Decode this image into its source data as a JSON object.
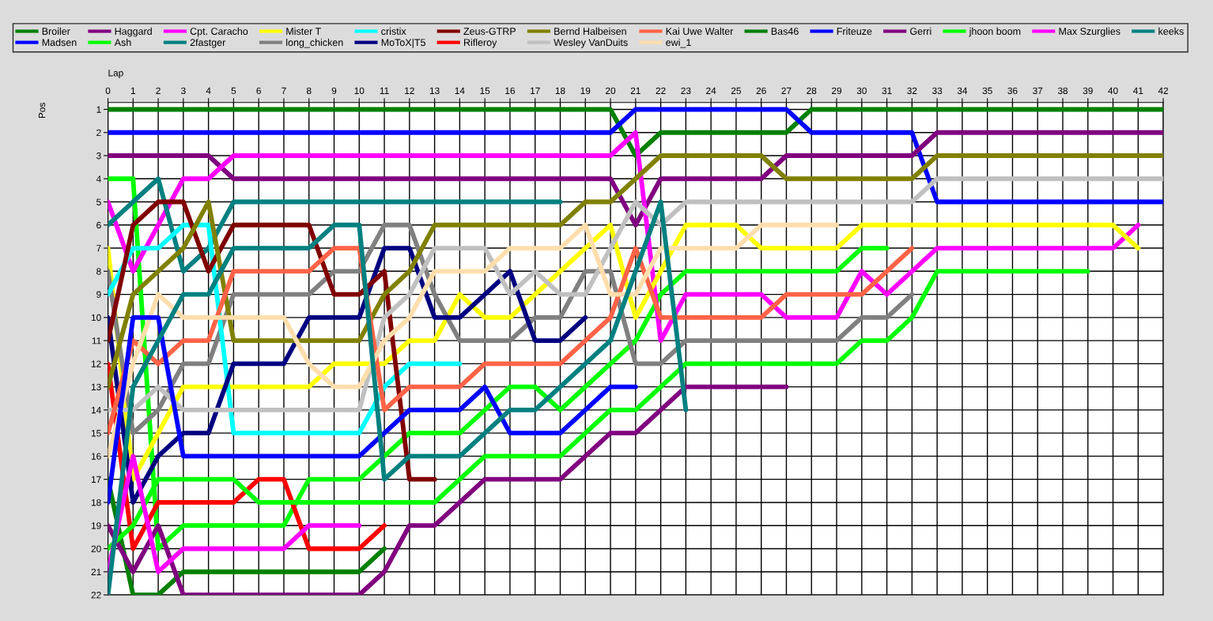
{
  "chart_data": {
    "type": "line",
    "xlabel": "Lap",
    "ylabel": "Pos",
    "x": [
      0,
      1,
      2,
      3,
      4,
      5,
      6,
      7,
      8,
      9,
      10,
      11,
      12,
      13,
      14,
      15,
      16,
      17,
      18,
      19,
      20,
      21,
      22,
      23,
      24,
      25,
      26,
      27,
      28,
      29,
      30,
      31,
      32,
      33,
      34,
      35,
      36,
      37,
      38,
      39,
      40,
      41,
      42
    ],
    "xlim": [
      0,
      42
    ],
    "xticks": [
      0,
      1,
      2,
      3,
      4,
      5,
      6,
      7,
      8,
      9,
      10,
      11,
      12,
      13,
      14,
      15,
      16,
      17,
      18,
      19,
      20,
      21,
      22,
      23,
      24,
      25,
      26,
      27,
      28,
      29,
      30,
      31,
      32,
      33,
      34,
      35,
      36,
      37,
      38,
      39,
      40,
      41,
      42
    ],
    "ylim": [
      22,
      0.7
    ],
    "yticks": [
      1,
      2,
      3,
      4,
      5,
      6,
      7,
      8,
      9,
      10,
      11,
      12,
      13,
      14,
      15,
      16,
      17,
      18,
      19,
      20,
      21,
      22
    ],
    "grid": true,
    "legend": "top",
    "line_style": "solid",
    "series": [
      {
        "name": "Broiler",
        "color": "#008000",
        "values": [
          1,
          1,
          1,
          1,
          1,
          1,
          1,
          1,
          1,
          1,
          1,
          1,
          1,
          1,
          1,
          1,
          1,
          1,
          1,
          1,
          1,
          3,
          2,
          2,
          2,
          2,
          2,
          2,
          1,
          1,
          1,
          1,
          1,
          1,
          1,
          1,
          1,
          1,
          1,
          1,
          1,
          1,
          1
        ]
      },
      {
        "name": "Madsen",
        "color": "#0000ff",
        "values": [
          2,
          2,
          2,
          2,
          2,
          2,
          2,
          2,
          2,
          2,
          2,
          2,
          2,
          2,
          2,
          2,
          2,
          2,
          2,
          2,
          2,
          1,
          1,
          1,
          1,
          1,
          1,
          1,
          2,
          2,
          2,
          2,
          2,
          5,
          5,
          5,
          5,
          5,
          5,
          5,
          5,
          5,
          5
        ]
      },
      {
        "name": "Haggard",
        "color": "#800080",
        "values": [
          3,
          3,
          3,
          3,
          3,
          4,
          4,
          4,
          4,
          4,
          4,
          4,
          4,
          4,
          4,
          4,
          4,
          4,
          4,
          4,
          4,
          6,
          4,
          4,
          4,
          4,
          4,
          3,
          3,
          3,
          3,
          3,
          3,
          2,
          2,
          2,
          2,
          2,
          2,
          2,
          2,
          2,
          2
        ]
      },
      {
        "name": "Ash",
        "color": "#00ff00",
        "values": [
          4,
          4,
          20,
          19,
          19,
          19,
          19,
          19,
          17,
          17,
          17,
          16,
          15,
          15,
          15,
          14,
          13,
          13,
          14,
          13,
          12,
          11,
          9,
          8,
          8,
          8,
          8,
          8,
          8,
          8,
          7,
          7,
          null,
          null,
          null,
          null,
          null,
          null,
          null,
          null,
          null,
          null,
          null
        ]
      },
      {
        "name": "Cpt. Caracho",
        "color": "#ff00ff",
        "values": [
          5,
          8,
          6,
          4,
          4,
          3,
          3,
          3,
          3,
          3,
          3,
          3,
          3,
          3,
          3,
          3,
          3,
          3,
          3,
          3,
          3,
          2,
          11,
          9,
          9,
          9,
          9,
          10,
          10,
          10,
          8,
          9,
          8,
          7,
          7,
          7,
          7,
          7,
          7,
          7,
          7,
          6,
          null
        ]
      },
      {
        "name": "2fastger",
        "color": "#008080",
        "values": [
          6,
          5,
          4,
          8,
          7,
          5,
          5,
          5,
          5,
          5,
          5,
          5,
          5,
          5,
          5,
          5,
          5,
          5,
          5,
          null,
          null,
          null,
          null,
          null,
          null,
          null,
          null,
          null,
          null,
          null,
          null,
          null,
          null,
          null,
          null,
          null,
          null,
          null,
          null,
          null,
          null,
          null,
          null
        ]
      },
      {
        "name": "Mister T",
        "color": "#ffff00",
        "values": [
          7,
          17,
          15,
          13,
          13,
          13,
          13,
          13,
          13,
          12,
          12,
          12,
          11,
          11,
          9,
          10,
          10,
          9,
          8,
          7,
          6,
          10,
          8,
          6,
          6,
          6,
          7,
          7,
          7,
          7,
          6,
          6,
          6,
          6,
          6,
          6,
          6,
          6,
          6,
          6,
          6,
          7,
          null
        ]
      },
      {
        "name": "long_chicken",
        "color": "#808080",
        "values": [
          8,
          15,
          14,
          12,
          12,
          9,
          9,
          9,
          9,
          8,
          8,
          6,
          6,
          9,
          11,
          11,
          11,
          10,
          10,
          8,
          8,
          12,
          12,
          11,
          11,
          11,
          11,
          11,
          11,
          11,
          10,
          10,
          9,
          null,
          null,
          null,
          null,
          null,
          null,
          null,
          null,
          null,
          null
        ]
      },
      {
        "name": "cristix",
        "color": "#00ffff",
        "values": [
          9,
          7,
          7,
          6,
          6,
          15,
          15,
          15,
          15,
          15,
          15,
          13,
          12,
          12,
          12,
          null,
          null,
          null,
          null,
          null,
          null,
          null,
          null,
          null,
          null,
          null,
          null,
          null,
          null,
          null,
          null,
          null,
          null,
          null,
          null,
          null,
          null,
          null,
          null,
          null,
          null,
          null,
          null
        ]
      },
      {
        "name": "MoToX|T5",
        "color": "#000080",
        "values": [
          10,
          18,
          16,
          15,
          15,
          12,
          12,
          12,
          10,
          10,
          10,
          7,
          7,
          10,
          10,
          9,
          8,
          11,
          11,
          10,
          null,
          null,
          null,
          null,
          null,
          null,
          null,
          null,
          null,
          null,
          null,
          null,
          null,
          null,
          null,
          null,
          null,
          null,
          null,
          null,
          null,
          null,
          null
        ]
      },
      {
        "name": "Zeus-GTRP",
        "color": "#800000",
        "values": [
          11,
          6,
          5,
          5,
          8,
          6,
          6,
          6,
          6,
          9,
          9,
          8,
          17,
          17,
          null,
          null,
          null,
          null,
          null,
          null,
          null,
          null,
          null,
          null,
          null,
          null,
          null,
          null,
          null,
          null,
          null,
          null,
          null,
          null,
          null,
          null,
          null,
          null,
          null,
          null,
          null,
          null,
          null
        ]
      },
      {
        "name": "Rifleroy",
        "color": "#ff0000",
        "values": [
          12,
          20,
          18,
          18,
          18,
          18,
          17,
          17,
          20,
          20,
          20,
          19,
          null,
          null,
          null,
          null,
          null,
          null,
          null,
          null,
          null,
          null,
          null,
          null,
          null,
          null,
          null,
          null,
          null,
          null,
          null,
          null,
          null,
          null,
          null,
          null,
          null,
          null,
          null,
          null,
          null,
          null,
          null
        ]
      },
      {
        "name": "Bernd Halbeisen",
        "color": "#808000",
        "values": [
          13,
          9,
          8,
          7,
          5,
          11,
          11,
          11,
          11,
          11,
          11,
          9,
          8,
          6,
          6,
          6,
          6,
          6,
          6,
          5,
          5,
          4,
          3,
          3,
          3,
          3,
          3,
          4,
          4,
          4,
          4,
          4,
          4,
          3,
          3,
          3,
          3,
          3,
          3,
          3,
          3,
          3,
          3
        ]
      },
      {
        "name": "Wesley VanDuits",
        "color": "#c0c0c0",
        "values": [
          14,
          14,
          13,
          14,
          14,
          14,
          14,
          14,
          14,
          14,
          14,
          10,
          9,
          7,
          7,
          7,
          9,
          8,
          9,
          9,
          7,
          5,
          6,
          5,
          5,
          5,
          5,
          5,
          5,
          5,
          5,
          5,
          5,
          4,
          4,
          4,
          4,
          4,
          4,
          4,
          4,
          4,
          4
        ]
      },
      {
        "name": "Kai Uwe Walter",
        "color": "#ff6347",
        "values": [
          15,
          11,
          12,
          11,
          11,
          8,
          8,
          8,
          8,
          7,
          7,
          14,
          13,
          13,
          13,
          12,
          12,
          12,
          12,
          11,
          10,
          7,
          10,
          10,
          10,
          10,
          10,
          9,
          9,
          9,
          9,
          8,
          7,
          null,
          null,
          null,
          null,
          null,
          null,
          null,
          null,
          null,
          null
        ]
      },
      {
        "name": "ewi_1",
        "color": "#ffdead",
        "values": [
          16,
          12,
          9,
          10,
          10,
          10,
          10,
          10,
          12,
          13,
          13,
          11,
          10,
          8,
          8,
          8,
          7,
          7,
          7,
          6,
          9,
          9,
          7,
          7,
          7,
          7,
          6,
          6,
          6,
          6,
          null,
          null,
          null,
          null,
          null,
          null,
          null,
          null,
          null,
          null,
          null,
          null,
          null
        ]
      },
      {
        "name": "Bas46",
        "color": "#008000",
        "values": [
          17,
          22,
          22,
          21,
          21,
          21,
          21,
          21,
          21,
          21,
          21,
          20,
          null,
          null,
          null,
          null,
          null,
          null,
          null,
          null,
          null,
          null,
          null,
          null,
          null,
          null,
          null,
          null,
          null,
          null,
          null,
          null,
          null,
          null,
          null,
          null,
          null,
          null,
          null,
          null,
          null,
          null,
          null
        ]
      },
      {
        "name": "Friteuze",
        "color": "#0000ff",
        "values": [
          18,
          10,
          10,
          16,
          16,
          16,
          16,
          16,
          16,
          16,
          16,
          15,
          14,
          14,
          14,
          13,
          15,
          15,
          15,
          14,
          13,
          13,
          null,
          null,
          null,
          null,
          null,
          null,
          null,
          null,
          null,
          null,
          null,
          null,
          null,
          null,
          null,
          null,
          null,
          null,
          null,
          null,
          null
        ]
      },
      {
        "name": "Gerri",
        "color": "#800080",
        "values": [
          19,
          21,
          19,
          22,
          22,
          22,
          22,
          22,
          22,
          22,
          22,
          21,
          19,
          19,
          18,
          17,
          17,
          17,
          17,
          16,
          15,
          15,
          14,
          13,
          13,
          13,
          13,
          13,
          null,
          null,
          null,
          null,
          null,
          null,
          null,
          null,
          null,
          null,
          null,
          null,
          null,
          null,
          null
        ]
      },
      {
        "name": "jhoon boom",
        "color": "#00ff00",
        "values": [
          20,
          19,
          17,
          17,
          17,
          17,
          18,
          18,
          18,
          18,
          18,
          18,
          18,
          18,
          17,
          16,
          16,
          16,
          16,
          15,
          14,
          14,
          13,
          12,
          12,
          12,
          12,
          12,
          12,
          12,
          11,
          11,
          10,
          8,
          8,
          8,
          8,
          8,
          8,
          8,
          null,
          null,
          null
        ]
      },
      {
        "name": "Max Szurglies",
        "color": "#ff00ff",
        "values": [
          21,
          16,
          21,
          20,
          20,
          20,
          20,
          20,
          19,
          19,
          19,
          null,
          null,
          null,
          null,
          null,
          null,
          null,
          null,
          null,
          null,
          null,
          null,
          null,
          null,
          null,
          null,
          null,
          null,
          null,
          null,
          null,
          null,
          null,
          null,
          null,
          null,
          null,
          null,
          null,
          null,
          null,
          null
        ]
      },
      {
        "name": "keeks",
        "color": "#008080",
        "values": [
          22,
          13,
          11,
          9,
          9,
          7,
          7,
          7,
          7,
          6,
          6,
          17,
          16,
          16,
          16,
          15,
          14,
          14,
          13,
          12,
          11,
          8,
          5,
          14,
          null,
          null,
          null,
          null,
          null,
          null,
          null,
          null,
          null,
          null,
          null,
          null,
          null,
          null,
          null,
          null,
          null,
          null,
          null
        ]
      }
    ]
  }
}
